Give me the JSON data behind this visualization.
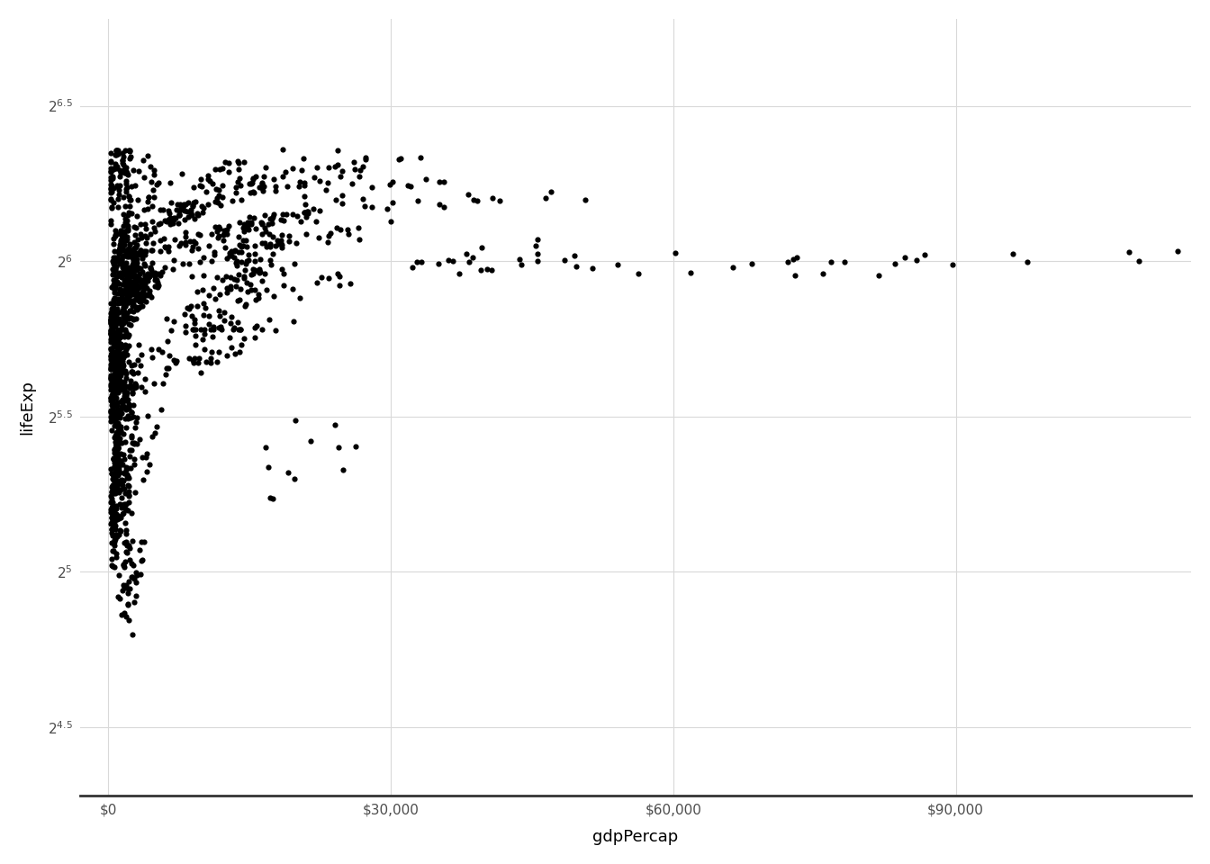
{
  "title": "",
  "xlabel": "gdpPercap",
  "ylabel": "lifeExp",
  "point_color": "#000000",
  "point_size": 20,
  "background_color": "#ffffff",
  "panel_background": "#ffffff",
  "grid_color": "#d9d9d9",
  "axis_text_color": "#4d4d4d",
  "ytick_values": [
    4.5,
    5.0,
    5.5,
    6.0,
    6.5
  ],
  "xtick_values": [
    0,
    30000,
    60000,
    90000
  ],
  "xlim": [
    -3000,
    115000
  ],
  "ylim": [
    4.28,
    6.78
  ],
  "figsize": [
    13.44,
    9.6
  ],
  "dpi": 100
}
